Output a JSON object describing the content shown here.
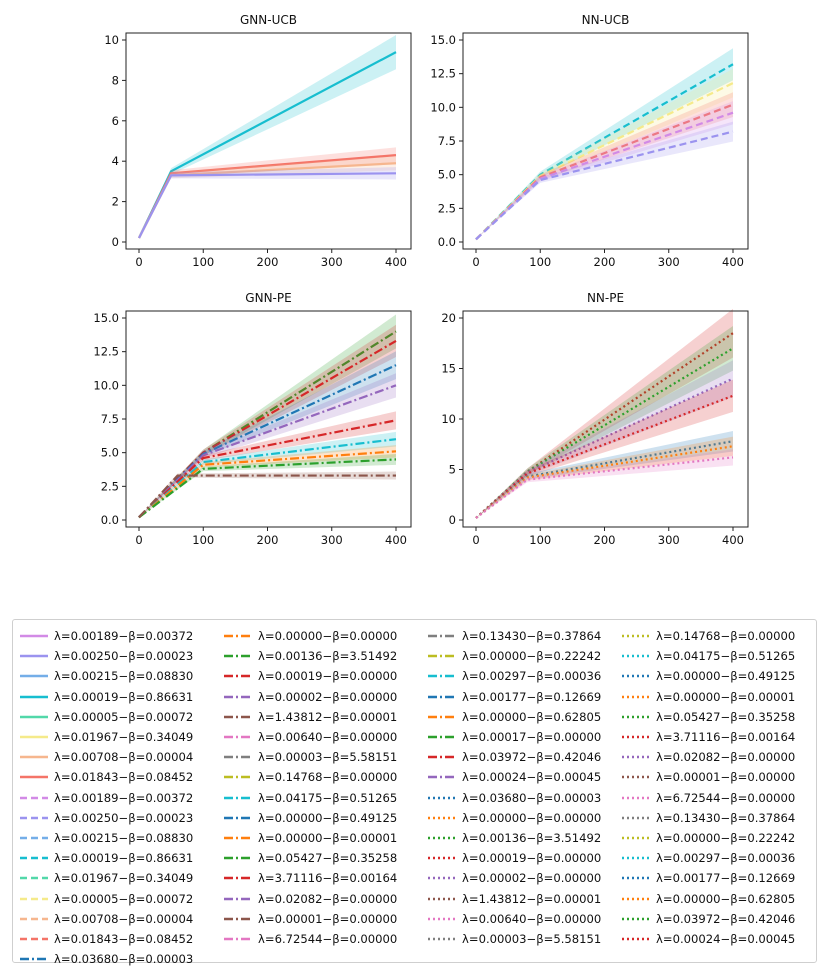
{
  "chart_data": [
    {
      "type": "line",
      "title": "GNN-UCB",
      "xlabel": "",
      "ylabel": "",
      "xlim": [
        0,
        400
      ],
      "ylim": [
        0,
        11
      ],
      "xticks": [
        "0",
        "100",
        "200",
        "300",
        "400"
      ],
      "yticks": [
        "0",
        "2",
        "4",
        "6",
        "8",
        "10"
      ],
      "series": [
        {
          "name": "λ=0.00019−β=0.86631 (solid)",
          "x": [
            0,
            50,
            400
          ],
          "values": [
            0.2,
            3.5,
            9.4
          ]
        },
        {
          "name": "λ=0.01843−β=0.08452 (solid)",
          "x": [
            0,
            50,
            400
          ],
          "values": [
            0.2,
            3.4,
            4.3
          ]
        },
        {
          "name": "λ=0.00708−β=0.00004 (solid)",
          "x": [
            0,
            50,
            400
          ],
          "values": [
            0.2,
            3.3,
            3.9
          ]
        },
        {
          "name": "λ=0.00250−β=0.00023 (solid)",
          "x": [
            0,
            50,
            400
          ],
          "values": [
            0.2,
            3.3,
            3.4
          ]
        }
      ]
    },
    {
      "type": "line",
      "title": "NN-UCB",
      "xlabel": "",
      "ylabel": "",
      "xlim": [
        0,
        400
      ],
      "ylim": [
        0,
        15
      ],
      "xticks": [
        "0",
        "100",
        "200",
        "300",
        "400"
      ],
      "yticks": [
        "0.0",
        "2.5",
        "5.0",
        "7.5",
        "10.0",
        "12.5",
        "15.0"
      ],
      "series": [
        {
          "name": "λ=0.00019−β=0.86631 (dashed)",
          "x": [
            0,
            100,
            400
          ],
          "values": [
            0.2,
            5.0,
            13.2
          ]
        },
        {
          "name": "λ=0.01967−β=0.34049 (dashed)",
          "x": [
            0,
            100,
            400
          ],
          "values": [
            0.2,
            4.9,
            11.8
          ]
        },
        {
          "name": "λ=0.01843−β=0.08452 (dashed)",
          "x": [
            0,
            100,
            400
          ],
          "values": [
            0.2,
            4.8,
            10.2
          ]
        },
        {
          "name": "λ=0.00189−β=0.00372 (dashed)",
          "x": [
            0,
            100,
            400
          ],
          "values": [
            0.2,
            4.7,
            9.6
          ]
        },
        {
          "name": "λ=0.00250−β=0.00023 (dashed)",
          "x": [
            0,
            100,
            400
          ],
          "values": [
            0.2,
            4.6,
            8.2
          ]
        }
      ]
    },
    {
      "type": "line",
      "title": "GNN-PE",
      "xlabel": "",
      "ylabel": "",
      "xlim": [
        0,
        400
      ],
      "ylim": [
        0,
        15
      ],
      "xticks": [
        "0",
        "100",
        "200",
        "300",
        "400"
      ],
      "yticks": [
        "0.0",
        "2.5",
        "5.0",
        "7.5",
        "10.0",
        "12.5",
        "15.0"
      ],
      "series": [
        {
          "name": "λ=0.00136−β=3.51492 (dashdot)",
          "x": [
            0,
            100,
            400
          ],
          "values": [
            0.2,
            5.0,
            14.0
          ]
        },
        {
          "name": "λ=0.00019−β=0.00000 (dashdot)",
          "x": [
            0,
            100,
            400
          ],
          "values": [
            0.2,
            5.0,
            13.3
          ]
        },
        {
          "name": "λ=0.00177−β=0.12669 (dashdot)",
          "x": [
            0,
            100,
            400
          ],
          "values": [
            0.2,
            4.9,
            11.5
          ]
        },
        {
          "name": "λ=0.00002−β=0.00000 (dashdot)",
          "x": [
            0,
            100,
            400
          ],
          "values": [
            0.2,
            4.8,
            10.0
          ]
        },
        {
          "name": "λ=0.03972−β=0.42046 (dashdot)",
          "x": [
            0,
            100,
            400
          ],
          "values": [
            0.2,
            4.6,
            7.4
          ]
        },
        {
          "name": "λ=0.00297−β=0.00036 (dashdot)",
          "x": [
            0,
            100,
            400
          ],
          "values": [
            0.2,
            4.3,
            6.0
          ]
        },
        {
          "name": "λ=0.00000−β=0.62805 (dashdot)",
          "x": [
            0,
            100,
            400
          ],
          "values": [
            0.2,
            4.1,
            5.1
          ]
        },
        {
          "name": "λ=0.00017−β=0.00000 (dashdot)",
          "x": [
            0,
            100,
            400
          ],
          "values": [
            0.2,
            3.8,
            4.5
          ]
        },
        {
          "name": "λ=1.43812−β=0.00001 (dashdot)",
          "x": [
            0,
            60,
            400
          ],
          "values": [
            0.2,
            3.3,
            3.3
          ]
        }
      ]
    },
    {
      "type": "line",
      "title": "NN-PE",
      "xlabel": "",
      "ylabel": "",
      "xlim": [
        0,
        400
      ],
      "ylim": [
        0,
        21
      ],
      "xticks": [
        "0",
        "100",
        "200",
        "300",
        "400"
      ],
      "yticks": [
        "0",
        "5",
        "10",
        "15",
        "20"
      ],
      "series": [
        {
          "name": "λ=0.03972−β=0.42046 (dotted)",
          "x": [
            0,
            80,
            400
          ],
          "values": [
            0.2,
            4.8,
            18.5
          ]
        },
        {
          "name": "λ=0.05427−β=0.35258 (dotted)",
          "x": [
            0,
            80,
            400
          ],
          "values": [
            0.2,
            4.8,
            17.0
          ]
        },
        {
          "name": "λ=0.02082−β=0.00000 (dotted)",
          "x": [
            0,
            80,
            400
          ],
          "values": [
            0.2,
            4.7,
            14.0
          ]
        },
        {
          "name": "λ=0.00019−β=0.00000 (dotted)",
          "x": [
            0,
            80,
            400
          ],
          "values": [
            0.2,
            4.6,
            12.3
          ]
        },
        {
          "name": "λ=0.00177−β=0.12669 (dotted)",
          "x": [
            0,
            80,
            400
          ],
          "values": [
            0.2,
            4.3,
            7.8
          ]
        },
        {
          "name": "λ=0.00000−β=0.62805 (dotted)",
          "x": [
            0,
            80,
            400
          ],
          "values": [
            0.2,
            4.2,
            7.3
          ]
        },
        {
          "name": "λ=0.00640−β=0.00000 (dotted)",
          "x": [
            0,
            80,
            400
          ],
          "values": [
            0.2,
            4.0,
            6.2
          ]
        }
      ]
    }
  ],
  "legend": {
    "columns": [
      [
        {
          "label": "λ=0.00189−β=0.00372",
          "color": "#d28ae6",
          "style": "solid"
        },
        {
          "label": "λ=0.00250−β=0.00023",
          "color": "#9b93ef",
          "style": "solid"
        },
        {
          "label": "λ=0.00215−β=0.08830",
          "color": "#74aee8",
          "style": "solid"
        },
        {
          "label": "λ=0.00019−β=0.86631",
          "color": "#17becf",
          "style": "solid"
        },
        {
          "label": "λ=0.00005−β=0.00072",
          "color": "#52d8a9",
          "style": "solid"
        },
        {
          "label": "λ=0.01967−β=0.34049",
          "color": "#f5ea8a",
          "style": "solid"
        },
        {
          "label": "λ=0.00708−β=0.00004",
          "color": "#f6b68e",
          "style": "solid"
        },
        {
          "label": "λ=0.01843−β=0.08452",
          "color": "#f47468",
          "style": "solid"
        },
        {
          "label": "λ=0.00189−β=0.00372",
          "color": "#d28ae6",
          "style": "dashed"
        },
        {
          "label": "λ=0.00250−β=0.00023",
          "color": "#9b93ef",
          "style": "dashed"
        },
        {
          "label": "λ=0.00215−β=0.08830",
          "color": "#74aee8",
          "style": "dashed"
        },
        {
          "label": "λ=0.00019−β=0.86631",
          "color": "#17becf",
          "style": "dashed"
        },
        {
          "label": "λ=0.01967−β=0.34049",
          "color": "#52d8a9",
          "style": "dashed"
        },
        {
          "label": "λ=0.00005−β=0.00072",
          "color": "#f5ea8a",
          "style": "dashed"
        },
        {
          "label": "λ=0.00708−β=0.00004",
          "color": "#f6b68e",
          "style": "dashed"
        },
        {
          "label": "λ=0.01843−β=0.08452",
          "color": "#f47468",
          "style": "dashed"
        },
        {
          "label": "λ=0.03680−β=0.00003",
          "color": "#1f77b4",
          "style": "dashdot"
        }
      ],
      [
        {
          "label": "λ=0.00000−β=0.00000",
          "color": "#ff7f0e",
          "style": "dashdot"
        },
        {
          "label": "λ=0.00136−β=3.51492",
          "color": "#2ca02c",
          "style": "dashdot"
        },
        {
          "label": "λ=0.00019−β=0.00000",
          "color": "#d62728",
          "style": "dashdot"
        },
        {
          "label": "λ=0.00002−β=0.00000",
          "color": "#9467bd",
          "style": "dashdot"
        },
        {
          "label": "λ=1.43812−β=0.00001",
          "color": "#8c564b",
          "style": "dashdot"
        },
        {
          "label": "λ=0.00640−β=0.00000",
          "color": "#e377c2",
          "style": "dashdot"
        },
        {
          "label": "λ=0.00003−β=5.58151",
          "color": "#7f7f7f",
          "style": "dashdot"
        },
        {
          "label": "λ=0.14768−β=0.00000",
          "color": "#bcbd22",
          "style": "dashdot"
        },
        {
          "label": "λ=0.04175−β=0.51265",
          "color": "#17becf",
          "style": "dashdot"
        },
        {
          "label": "λ=0.00000−β=0.49125",
          "color": "#1f77b4",
          "style": "dashdot"
        },
        {
          "label": "λ=0.00000−β=0.00001",
          "color": "#ff7f0e",
          "style": "dashdot"
        },
        {
          "label": "λ=0.05427−β=0.35258",
          "color": "#2ca02c",
          "style": "dashdot"
        },
        {
          "label": "λ=3.71116−β=0.00164",
          "color": "#d62728",
          "style": "dashdot"
        },
        {
          "label": "λ=0.02082−β=0.00000",
          "color": "#9467bd",
          "style": "dashdot"
        },
        {
          "label": "λ=0.00001−β=0.00000",
          "color": "#8c564b",
          "style": "dashdot"
        },
        {
          "label": "λ=6.72544−β=0.00000",
          "color": "#e377c2",
          "style": "dashdot"
        }
      ],
      [
        {
          "label": "λ=0.13430−β=0.37864",
          "color": "#7f7f7f",
          "style": "dashdot"
        },
        {
          "label": "λ=0.00000−β=0.22242",
          "color": "#bcbd22",
          "style": "dashdot"
        },
        {
          "label": "λ=0.00297−β=0.00036",
          "color": "#17becf",
          "style": "dashdot"
        },
        {
          "label": "λ=0.00177−β=0.12669",
          "color": "#1f77b4",
          "style": "dashdot"
        },
        {
          "label": "λ=0.00000−β=0.62805",
          "color": "#ff7f0e",
          "style": "dashdot"
        },
        {
          "label": "λ=0.00017−β=0.00000",
          "color": "#2ca02c",
          "style": "dashdot"
        },
        {
          "label": "λ=0.03972−β=0.42046",
          "color": "#d62728",
          "style": "dashdot"
        },
        {
          "label": "λ=0.00024−β=0.00045",
          "color": "#9467bd",
          "style": "dashdot"
        },
        {
          "label": "λ=0.03680−β=0.00003",
          "color": "#1f77b4",
          "style": "dotted"
        },
        {
          "label": "λ=0.00000−β=0.00000",
          "color": "#ff7f0e",
          "style": "dotted"
        },
        {
          "label": "λ=0.00136−β=3.51492",
          "color": "#2ca02c",
          "style": "dotted"
        },
        {
          "label": "λ=0.00019−β=0.00000",
          "color": "#d62728",
          "style": "dotted"
        },
        {
          "label": "λ=0.00002−β=0.00000",
          "color": "#9467bd",
          "style": "dotted"
        },
        {
          "label": "λ=1.43812−β=0.00001",
          "color": "#8c564b",
          "style": "dotted"
        },
        {
          "label": "λ=0.00640−β=0.00000",
          "color": "#e377c2",
          "style": "dotted"
        },
        {
          "label": "λ=0.00003−β=5.58151",
          "color": "#7f7f7f",
          "style": "dotted"
        }
      ],
      [
        {
          "label": "λ=0.14768−β=0.00000",
          "color": "#bcbd22",
          "style": "dotted"
        },
        {
          "label": "λ=0.04175−β=0.51265",
          "color": "#17becf",
          "style": "dotted"
        },
        {
          "label": "λ=0.00000−β=0.49125",
          "color": "#1f77b4",
          "style": "dotted"
        },
        {
          "label": "λ=0.00000−β=0.00001",
          "color": "#ff7f0e",
          "style": "dotted"
        },
        {
          "label": "λ=0.05427−β=0.35258",
          "color": "#2ca02c",
          "style": "dotted"
        },
        {
          "label": "λ=3.71116−β=0.00164",
          "color": "#d62728",
          "style": "dotted"
        },
        {
          "label": "λ=0.02082−β=0.00000",
          "color": "#9467bd",
          "style": "dotted"
        },
        {
          "label": "λ=0.00001−β=0.00000",
          "color": "#8c564b",
          "style": "dotted"
        },
        {
          "label": "λ=6.72544−β=0.00000",
          "color": "#e377c2",
          "style": "dotted"
        },
        {
          "label": "λ=0.13430−β=0.37864",
          "color": "#7f7f7f",
          "style": "dotted"
        },
        {
          "label": "λ=0.00000−β=0.22242",
          "color": "#bcbd22",
          "style": "dotted"
        },
        {
          "label": "λ=0.00297−β=0.00036",
          "color": "#17becf",
          "style": "dotted"
        },
        {
          "label": "λ=0.00177−β=0.12669",
          "color": "#1f77b4",
          "style": "dotted"
        },
        {
          "label": "λ=0.00000−β=0.62805",
          "color": "#ff7f0e",
          "style": "dotted"
        },
        {
          "label": "λ=0.03972−β=0.42046",
          "color": "#2ca02c",
          "style": "dotted"
        },
        {
          "label": "λ=0.00024−β=0.00045",
          "color": "#d62728",
          "style": "dotted"
        }
      ]
    ]
  }
}
